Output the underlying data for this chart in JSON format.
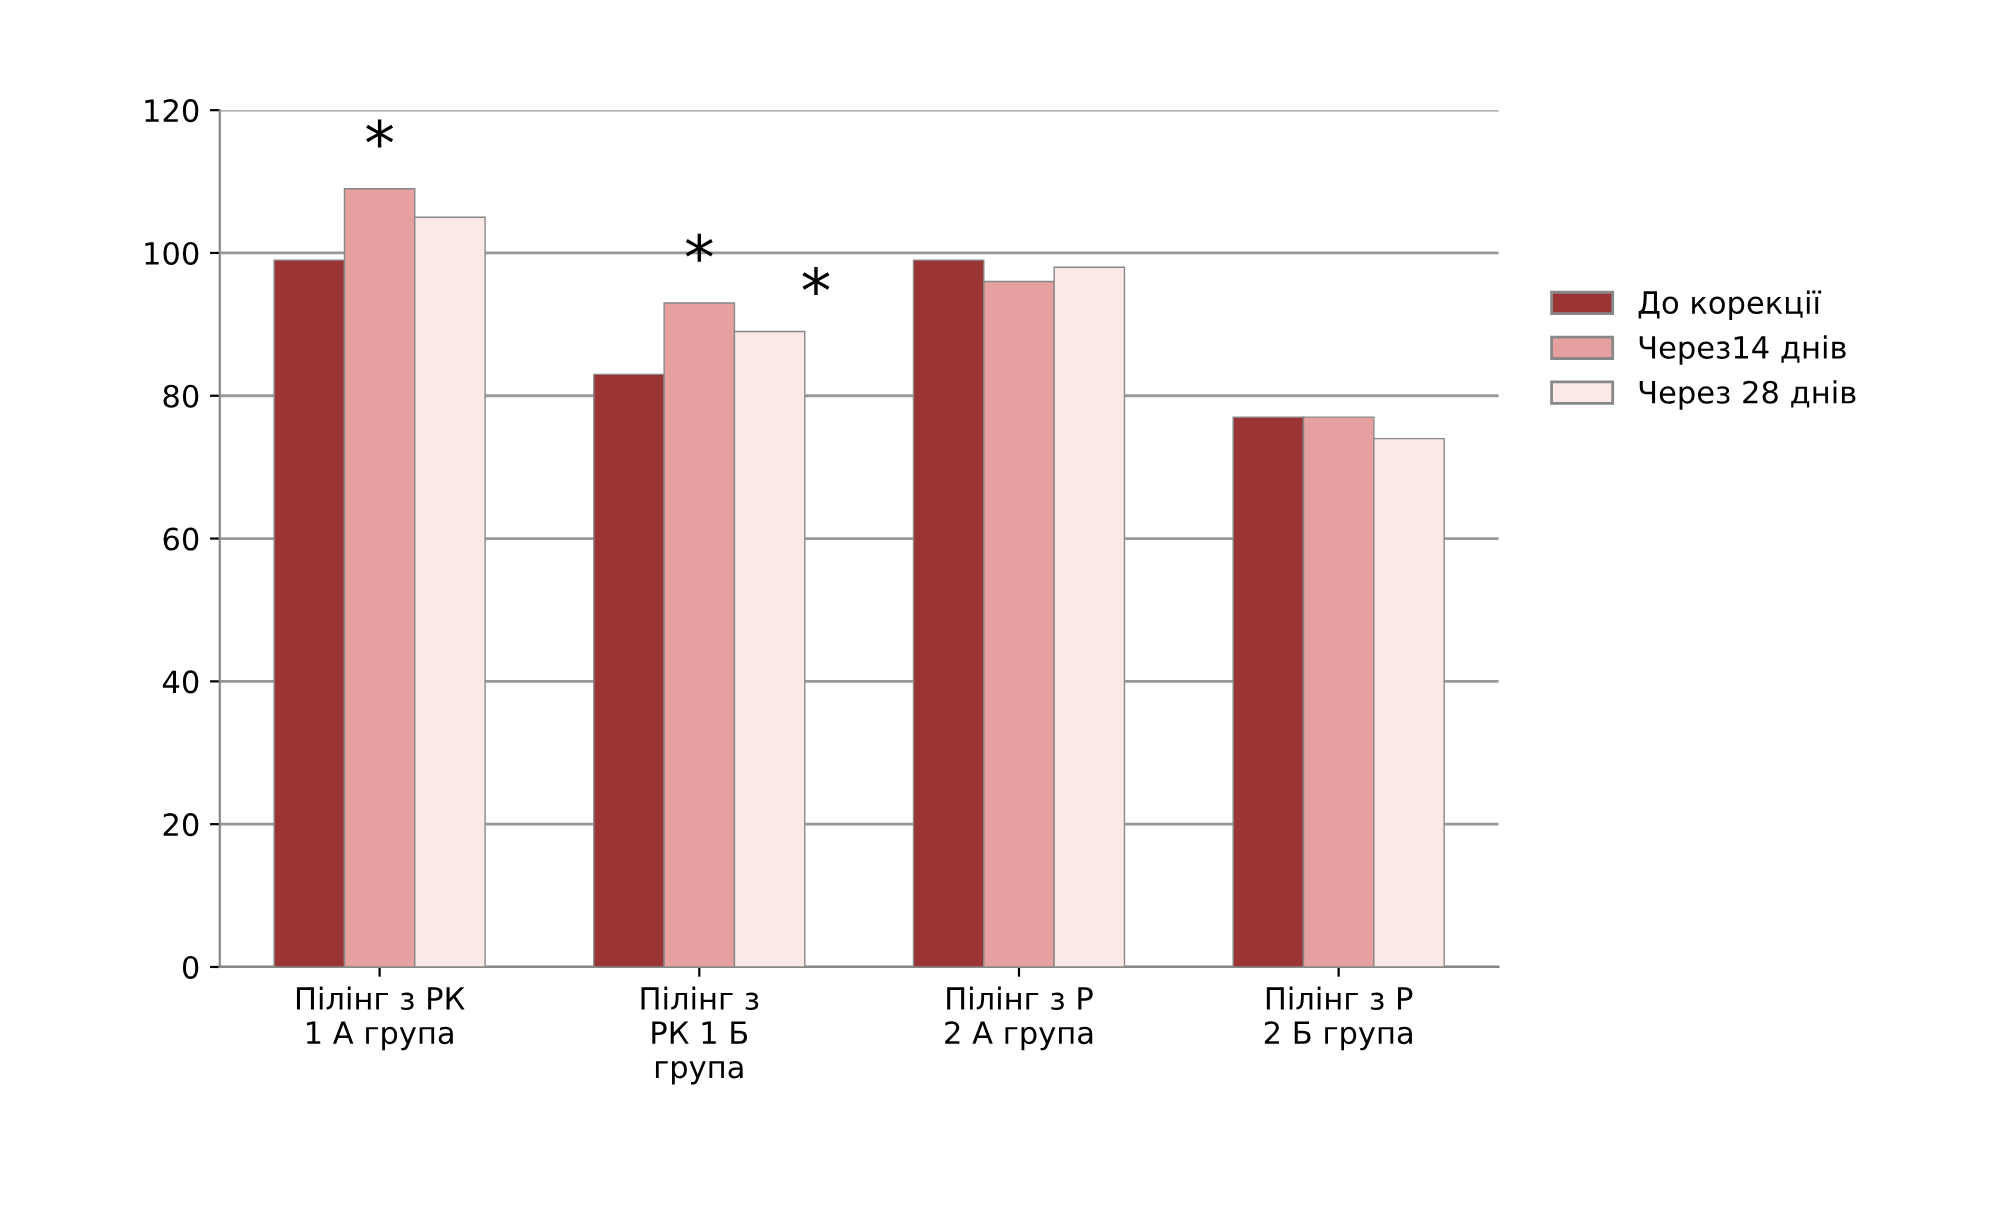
{
  "chart_data": {
    "type": "bar",
    "categories": [
      "Пілінг з РК\n1 А група",
      "Пілінг з\nРК 1 Б\nгрупа",
      "Пілінг з Р\n2 А група",
      "Пілінг з Р\n2 Б група"
    ],
    "series": [
      {
        "name": "До корекції",
        "color": "#9b3535",
        "values": [
          99,
          83,
          99,
          77
        ]
      },
      {
        "name": "Через14 днів",
        "color": "#e6a0a0",
        "values": [
          109,
          93,
          96,
          77
        ]
      },
      {
        "name": "Через 28 днів",
        "color": "#fde8e8",
        "values": [
          105,
          89,
          98,
          74
        ]
      }
    ],
    "annotations": [
      {
        "text": "*",
        "x": "Пілінг з РК\n1 А група",
        "y": 109
      },
      {
        "text": "*",
        "x": "Пілінг з\nРК 1 Б\nгрупа",
        "y": 93
      },
      "*"
    ],
    "ylim": [
      0,
      120
    ],
    "yticks": [
      0,
      20,
      40,
      60,
      80,
      100,
      120
    ],
    "grid": "y",
    "legend": "right"
  }
}
